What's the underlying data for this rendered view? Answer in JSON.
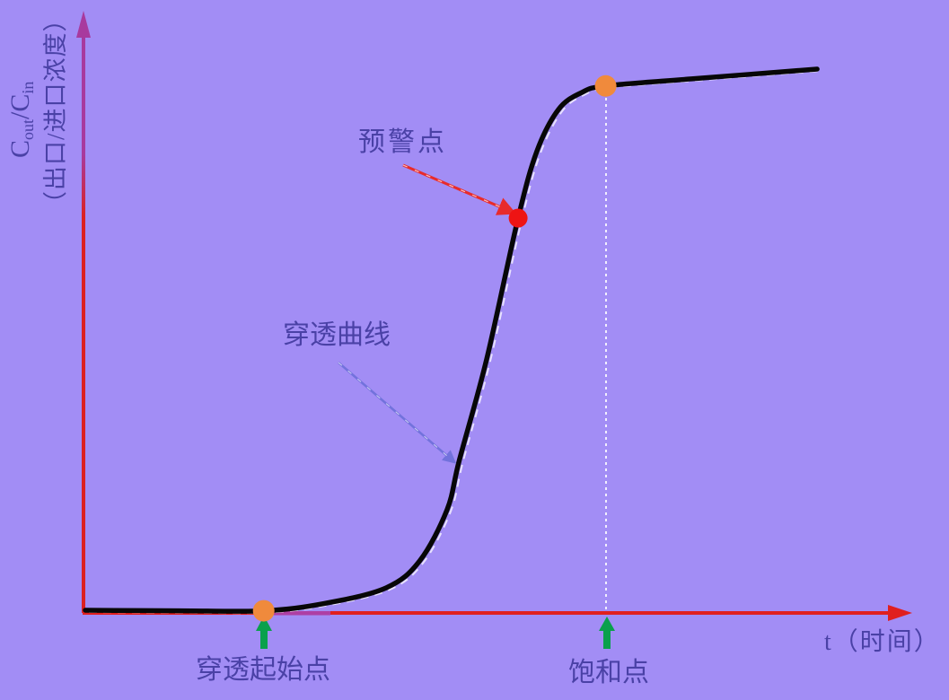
{
  "page": {
    "background_color": "#a28df5"
  },
  "labels": {
    "y_axis_formula": {
      "c1": "C",
      "sub1": "out",
      "c2": "/C",
      "sub2": "in"
    },
    "y_axis_paren": "（出口/进口浓度）",
    "x_axis": "t（时间）",
    "curve": "穿透曲线",
    "warning_point": "预警点",
    "breakthrough_start": "穿透起始点",
    "saturation_point": "饱和点"
  },
  "colors": {
    "background": "#a28df5",
    "text": "#4a41a6",
    "y_axis_top": "#a83a9e",
    "y_axis_bottom": "#dc2121",
    "x_axis": "#e01f1f",
    "x_axis_magenta_segment": "#ae3fa4",
    "curve": "#070707",
    "curve_halo": "#ffffff",
    "marker_orange": "#f08a3c",
    "marker_red": "#ee1414",
    "annotation_arrow_red": "#e82b2b",
    "annotation_arrow_blue": "#7272dc",
    "annotation_arrow_green": "#0aa04c",
    "guide_dashed": "#ffffff"
  },
  "chart_data": {
    "type": "line",
    "title": "",
    "xlabel": "t（时间）",
    "ylabel": "Cout/Cin（出口/进口浓度）",
    "x_range_normalized": [
      0,
      1
    ],
    "y_range_ratio": [
      0,
      1
    ],
    "grid": false,
    "legend": false,
    "axis_tick_labels": "none",
    "series": [
      {
        "name": "穿透曲线",
        "points_t_ratio": [
          [
            0.0,
            0.005
          ],
          [
            0.114,
            0.004
          ],
          [
            0.216,
            0.004
          ],
          [
            0.288,
            0.017
          ],
          [
            0.364,
            0.046
          ],
          [
            0.405,
            0.096
          ],
          [
            0.438,
            0.19
          ],
          [
            0.453,
            0.282
          ],
          [
            0.486,
            0.467
          ],
          [
            0.524,
            0.726
          ],
          [
            0.547,
            0.85
          ],
          [
            0.573,
            0.926
          ],
          [
            0.601,
            0.957
          ],
          [
            0.63,
            0.969
          ],
          [
            0.734,
            0.982
          ],
          [
            0.886,
            1.0
          ]
        ]
      }
    ],
    "annotations": [
      {
        "id": "breakthrough-start",
        "label": "穿透起始点",
        "t": 0.216,
        "ratio": 0.004,
        "marker_color": "#f08a3c",
        "marker_radius": 12,
        "pointer": "green-up-arrow"
      },
      {
        "id": "warning-point",
        "label": "预警点",
        "t": 0.524,
        "ratio": 0.726,
        "marker_color": "#ee1414",
        "marker_radius": 10.5,
        "pointer": "red-arrow"
      },
      {
        "id": "saturation-point",
        "label": "饱和点",
        "t": 0.63,
        "ratio": 0.969,
        "marker_color": "#f08a3c",
        "marker_radius": 12,
        "pointer": "green-up-arrow",
        "guide": "white-dashed-vertical-to-x-axis"
      }
    ],
    "curve_label_annotation": {
      "label": "穿透曲线",
      "pointer": "blue-arrow"
    }
  }
}
